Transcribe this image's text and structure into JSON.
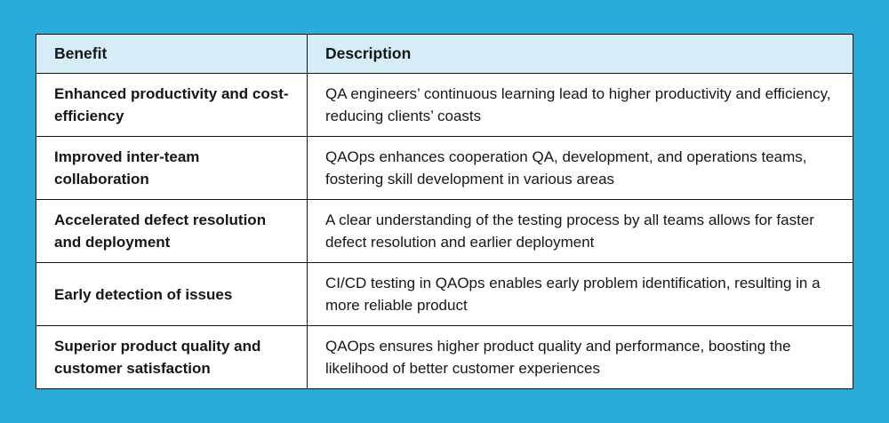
{
  "page": {
    "background_color": "#2BABD8",
    "header_bg_color": "#D6ECF7",
    "row_bg_color": "#FFFFFF",
    "border_color": "#131313",
    "text_color": "#161616"
  },
  "table": {
    "header": {
      "benefit": "Benefit",
      "description": "Description"
    },
    "rows": [
      {
        "benefit": "Enhanced productivity and cost-efficiency",
        "description": "QA engineers’ continuous learning lead to higher productivity and efficiency, reducing clients’ coasts"
      },
      {
        "benefit": "Improved inter-team collaboration",
        "description": "QAOps enhances cooperation QA, development, and operations teams, fostering skill development in various areas"
      },
      {
        "benefit": "Accelerated defect resolution and deployment",
        "description": "A clear understanding of the testing process by all teams allows for faster defect resolution and earlier deployment"
      },
      {
        "benefit": "Early detection of issues",
        "description": "CI/CD testing in QAOps enables early problem identification, resulting in a more reliable product"
      },
      {
        "benefit": "Superior product quality and customer satisfaction",
        "description": "QAOps ensures higher product quality and performance, boosting the likelihood of better customer experiences"
      }
    ]
  }
}
